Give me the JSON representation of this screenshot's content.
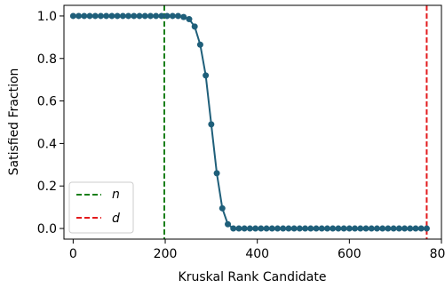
{
  "chart_data": {
    "type": "line",
    "xlabel": "Kruskal Rank Candidate",
    "ylabel": "Satisfied Fraction",
    "xlim": [
      -20,
      800
    ],
    "ylim": [
      -0.05,
      1.05
    ],
    "xticks": [
      0,
      200,
      400,
      600,
      800
    ],
    "yticks": [
      0.0,
      0.2,
      0.4,
      0.6,
      0.8,
      1.0
    ],
    "xtick_labels": [
      "0",
      "200",
      "400",
      "600",
      "800"
    ],
    "ytick_labels": [
      "0.0",
      "0.2",
      "0.4",
      "0.6",
      "0.8",
      "1.0"
    ],
    "grid": false,
    "legend_position": "lower-left",
    "series": [
      {
        "color": "#1f5f7a",
        "marker": "circle",
        "x": [
          0,
          12,
          24,
          36,
          48,
          60,
          72,
          84,
          96,
          108,
          120,
          132,
          144,
          156,
          168,
          180,
          192,
          204,
          216,
          228,
          240,
          252,
          264,
          276,
          288,
          300,
          312,
          324,
          336,
          348,
          360,
          372,
          384,
          396,
          408,
          420,
          432,
          444,
          456,
          468,
          480,
          492,
          504,
          516,
          528,
          540,
          552,
          564,
          576,
          588,
          600,
          612,
          624,
          636,
          648,
          660,
          672,
          684,
          696,
          708,
          720,
          732,
          744,
          756,
          768
        ],
        "y": [
          1.0,
          1.0,
          1.0,
          1.0,
          1.0,
          1.0,
          1.0,
          1.0,
          1.0,
          1.0,
          1.0,
          1.0,
          1.0,
          1.0,
          1.0,
          1.0,
          1.0,
          1.0,
          1.0,
          1.0,
          0.995,
          0.985,
          0.95,
          0.865,
          0.72,
          0.49,
          0.26,
          0.095,
          0.02,
          0.0,
          0.0,
          0.0,
          0.0,
          0.0,
          0.0,
          0.0,
          0.0,
          0.0,
          0.0,
          0.0,
          0.0,
          0.0,
          0.0,
          0.0,
          0.0,
          0.0,
          0.0,
          0.0,
          0.0,
          0.0,
          0.0,
          0.0,
          0.0,
          0.0,
          0.0,
          0.0,
          0.0,
          0.0,
          0.0,
          0.0,
          0.0,
          0.0,
          0.0,
          0.0,
          0.0
        ]
      }
    ],
    "vlines": [
      {
        "name": "n",
        "x": 198,
        "color": "#1a7f1a",
        "style": "dashed"
      },
      {
        "name": "d",
        "x": 768,
        "color": "#e31a1c",
        "style": "dashed"
      }
    ]
  }
}
